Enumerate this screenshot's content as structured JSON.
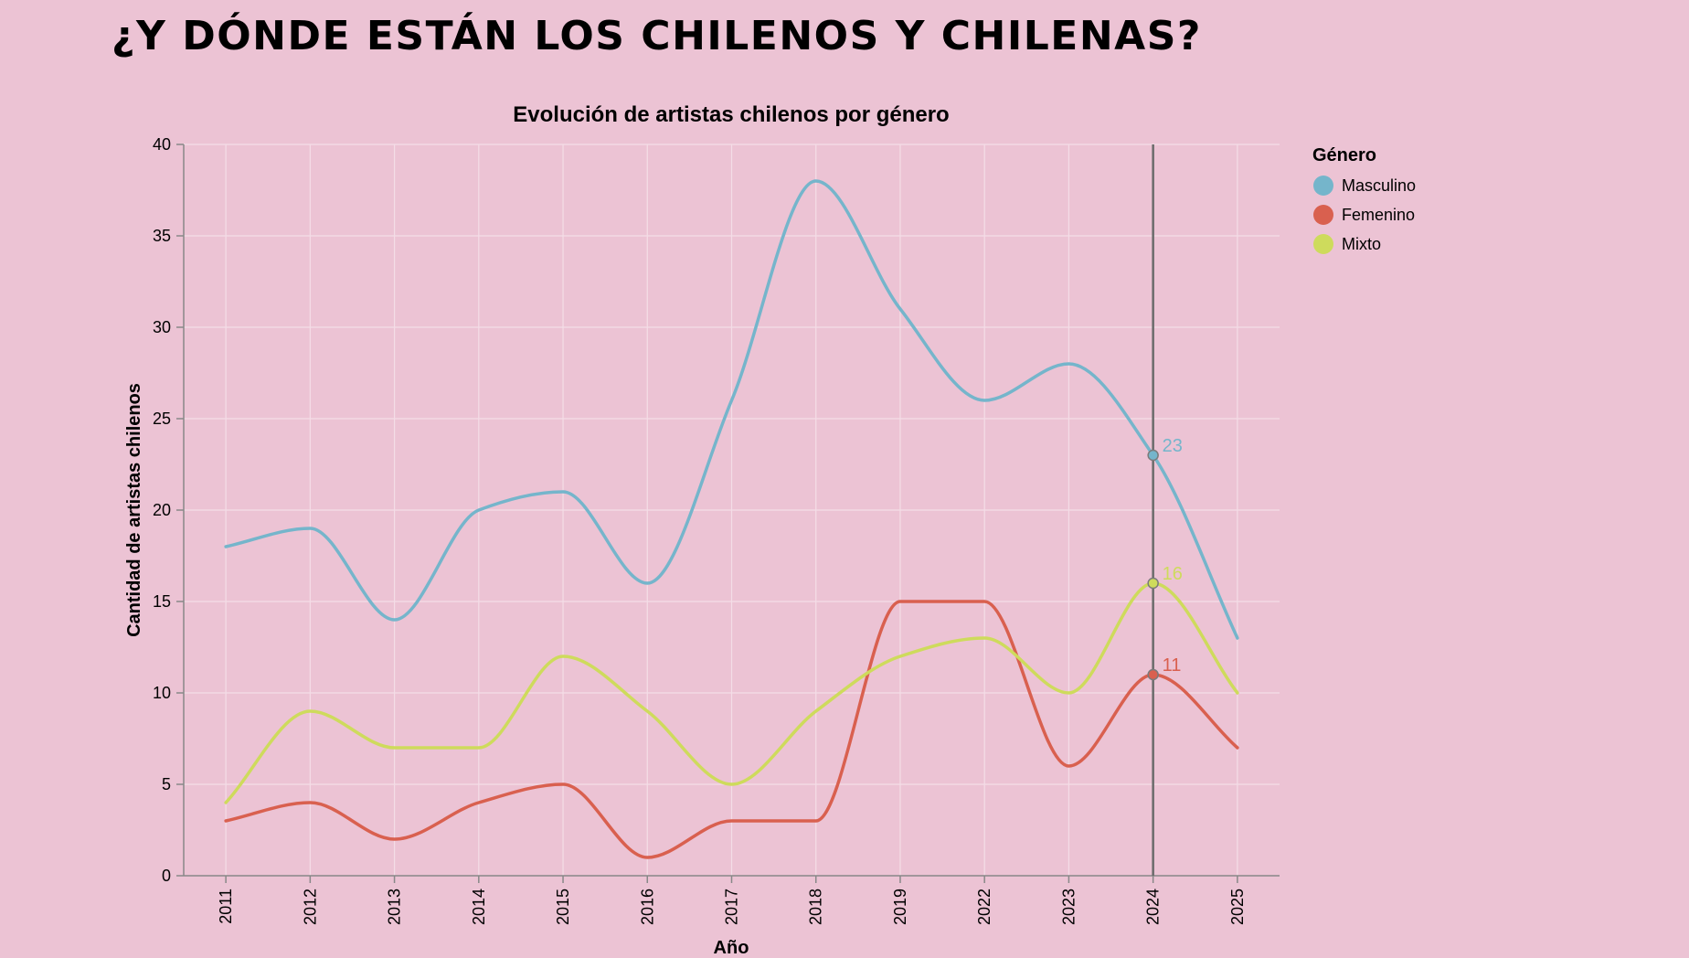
{
  "page": {
    "title": "¿Y DÓNDE ESTÁN LOS CHILENOS Y CHILENAS?"
  },
  "chart_data": {
    "type": "line",
    "title": "Evolución de artistas chilenos por género",
    "xlabel": "Año",
    "ylabel": "Cantidad de artistas chilenos",
    "categories": [
      "2011",
      "2012",
      "2013",
      "2014",
      "2015",
      "2016",
      "2017",
      "2018",
      "2019",
      "2022",
      "2023",
      "2024",
      "2025"
    ],
    "ylim": [
      0,
      40
    ],
    "yticks": [
      0,
      5,
      10,
      15,
      20,
      25,
      30,
      35,
      40
    ],
    "grid": "horizontal",
    "legend": {
      "title": "Género",
      "placement": "top-right"
    },
    "series": [
      {
        "name": "Masculino",
        "color": "#75b5cb",
        "values": [
          18,
          19,
          14,
          20,
          21,
          16,
          26,
          38,
          31,
          26,
          28,
          23,
          13
        ]
      },
      {
        "name": "Femenino",
        "color": "#d9604f",
        "values": [
          3,
          4,
          2,
          4,
          5,
          1,
          3,
          3,
          15,
          15,
          6,
          11,
          7
        ]
      },
      {
        "name": "Mixto",
        "color": "#cedb5c",
        "values": [
          4,
          9,
          7,
          7,
          12,
          9,
          5,
          9,
          12,
          13,
          10,
          16,
          10
        ]
      }
    ],
    "highlight": {
      "category": "2024",
      "labels": [
        "23",
        "11",
        "16"
      ],
      "rule_color": "#6b6b6b"
    }
  }
}
